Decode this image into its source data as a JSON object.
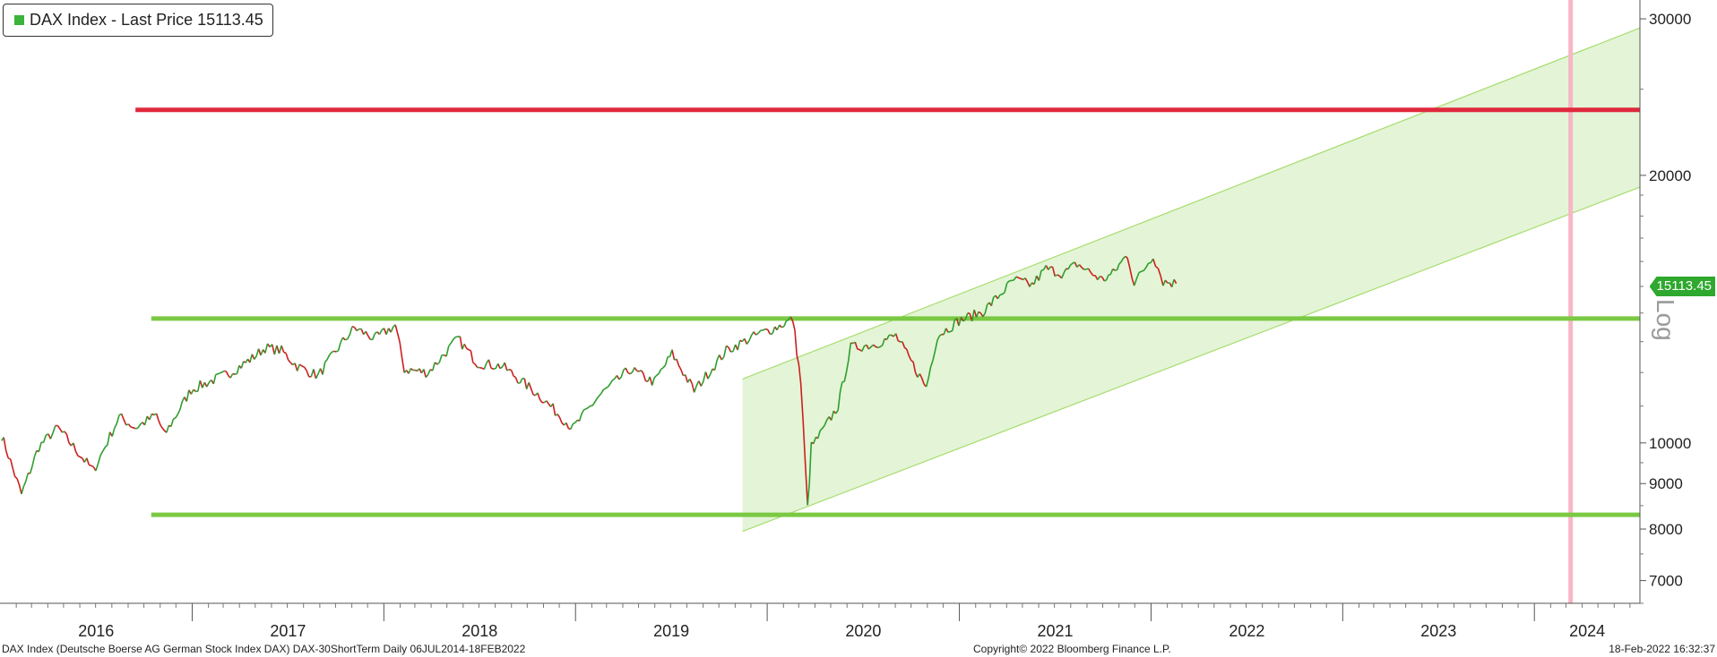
{
  "legend": {
    "label": "DAX Index - Last Price 15113.45",
    "swatch_color": "#3cb43c"
  },
  "price_tag": "15113.45",
  "axis_log_label": "Log",
  "footer": {
    "description": "DAX Index (Deutsche Boerse AG German Stock Index DAX) DAX-30ShortTerm  Daily 06JUL2014-18FEB2022",
    "copyright": "Copyright© 2022 Bloomberg Finance L.P.",
    "timestamp": "18-Feb-2022 16:32:37"
  },
  "chart_data": {
    "type": "line",
    "title": "DAX Index - Last Price 15113.45",
    "last_price": 15113.45,
    "y_scale": "log",
    "ylim": [
      6600,
      31500
    ],
    "y_ticks": [
      7000,
      8000,
      9000,
      10000,
      20000,
      30000
    ],
    "xlim": [
      "2016-01-01",
      "2024-07-20"
    ],
    "x_tick_labels": [
      "2016",
      "2017",
      "2018",
      "2019",
      "2020",
      "2021",
      "2022",
      "2023",
      "2024"
    ],
    "grid": false,
    "legend_position": "top-left",
    "colors": {
      "up": "#2e9e2e",
      "down": "#cc1f1f",
      "support": "#7ac943",
      "resistance": "#e0283c",
      "channel_fill": "#e3f5d6",
      "channel_edge": "#a8dc70",
      "marker": "#f7b6c4"
    },
    "series": [
      {
        "name": "DAX Index",
        "x": [
          "2016-01-04",
          "2016-02-11",
          "2016-03-15",
          "2016-04-20",
          "2016-06-27",
          "2016-08-15",
          "2016-09-15",
          "2016-10-25",
          "2016-11-09",
          "2016-12-30",
          "2017-02-15",
          "2017-03-15",
          "2017-04-25",
          "2017-05-20",
          "2017-06-20",
          "2017-07-20",
          "2017-08-29",
          "2017-10-15",
          "2017-11-06",
          "2017-12-15",
          "2018-01-23",
          "2018-02-09",
          "2018-03-26",
          "2018-05-22",
          "2018-06-28",
          "2018-08-15",
          "2018-10-25",
          "2018-12-27",
          "2019-02-15",
          "2019-04-15",
          "2019-05-31",
          "2019-07-04",
          "2019-08-15",
          "2019-10-15",
          "2019-12-15",
          "2020-01-20",
          "2020-02-19",
          "2020-03-05",
          "2020-03-18",
          "2020-03-25",
          "2020-04-15",
          "2020-05-15",
          "2020-06-08",
          "2020-07-21",
          "2020-09-02",
          "2020-10-30",
          "2020-11-20",
          "2020-12-31",
          "2021-02-15",
          "2021-03-15",
          "2021-04-15",
          "2021-05-19",
          "2021-06-15",
          "2021-07-19",
          "2021-08-13",
          "2021-09-30",
          "2021-10-20",
          "2021-11-17",
          "2021-11-30",
          "2022-01-05",
          "2022-01-24",
          "2022-02-18"
        ],
        "values": [
          10200,
          8750,
          9900,
          10400,
          9300,
          10700,
          10400,
          10750,
          10200,
          11480,
          11800,
          12000,
          12450,
          12800,
          12700,
          12200,
          11900,
          13000,
          13470,
          13100,
          13560,
          12100,
          12000,
          13100,
          12300,
          12200,
          11300,
          10380,
          11300,
          12100,
          11700,
          12600,
          11450,
          12700,
          13250,
          13500,
          13790,
          11700,
          8440,
          9900,
          10300,
          11000,
          12800,
          12900,
          13200,
          11550,
          13200,
          13720,
          14050,
          14600,
          15250,
          15050,
          15700,
          15500,
          15900,
          15250,
          15500,
          16300,
          15100,
          16270,
          15200,
          15113.45
        ]
      }
    ],
    "annotations": [
      {
        "type": "horizontal_line",
        "label": "resistance",
        "value": 23700,
        "from": "2016-09-15",
        "to": "2024-07-20",
        "color": "#e0283c"
      },
      {
        "type": "horizontal_line",
        "label": "support_upper",
        "value": 13800,
        "from": "2016-10-15",
        "to": "2024-07-20",
        "color": "#7ac943"
      },
      {
        "type": "horizontal_line",
        "label": "support_lower",
        "value": 8300,
        "from": "2016-10-15",
        "to": "2024-07-20",
        "color": "#7ac943"
      },
      {
        "type": "channel",
        "start": "2019-11-15",
        "end": "2024-07-20",
        "upper_start": 11800,
        "upper_end": 29300,
        "lower_start": 7950,
        "lower_end": 19400
      },
      {
        "type": "vertical_line",
        "date": "2024-03-10",
        "color": "#f7b6c4"
      }
    ]
  }
}
